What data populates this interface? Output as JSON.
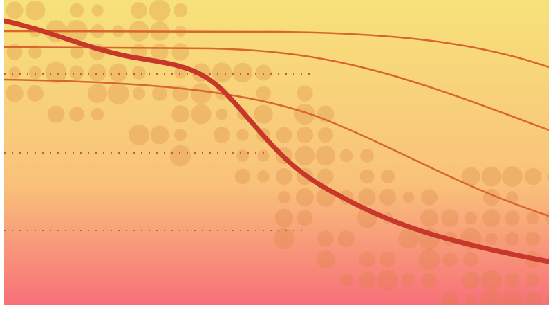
{
  "colors": {
    "background_top": "#f7e27a",
    "background_mid": "#f9c27a",
    "background_bottom": "#f8707a",
    "dot_fill": "#d9823c",
    "main_curve": "#c8382a",
    "thin_curves": "#d9642e",
    "guide_dots": "#c8602e"
  },
  "icons": [
    "bubble-pattern",
    "decline-curve"
  ]
}
